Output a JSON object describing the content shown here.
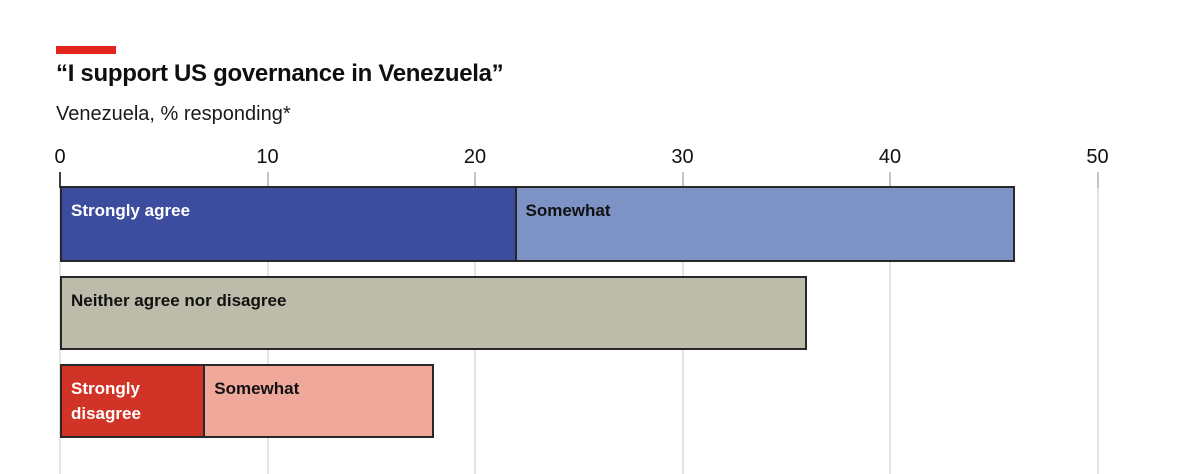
{
  "header": {
    "title": "“I support US governance in Venezuela”",
    "subtitle": "Venezuela, % responding*",
    "accent_color": "#e3261d"
  },
  "colors": {
    "bar_border": "#282828",
    "gridline": "#e4e4e4",
    "tick": "#c4c4c4",
    "tick_zero": "#3f3f3f"
  },
  "chart_data": {
    "type": "bar",
    "variant": "stacked-horizontal",
    "title": "“I support US governance in Venezuela”",
    "subtitle": "Venezuela, % responding*",
    "xlabel": "",
    "ylabel": "",
    "x_axis": {
      "min": 0,
      "max": 50,
      "ticks": [
        0,
        10,
        20,
        30,
        40,
        50
      ],
      "gridlines": true
    },
    "legend": "labels-inside-bars",
    "rows": [
      {
        "name": "agree",
        "segments": [
          {
            "label": "Strongly agree",
            "value": 22,
            "color": "#3c4c9e",
            "text_color": "#ffffff"
          },
          {
            "label": "Somewhat",
            "value": 24,
            "color": "#7e93c5",
            "text_color": "#111111"
          }
        ]
      },
      {
        "name": "neither",
        "segments": [
          {
            "label": "Neither agree nor disagree",
            "value": 36,
            "color": "#bdbcab",
            "text_color": "#111111"
          }
        ]
      },
      {
        "name": "disagree",
        "segments": [
          {
            "label": "Strongly disagree",
            "value": 7,
            "color": "#d23327",
            "text_color": "#ffffff"
          },
          {
            "label": "Somewhat",
            "value": 11,
            "color": "#f0a89a",
            "text_color": "#111111"
          }
        ]
      }
    ]
  }
}
